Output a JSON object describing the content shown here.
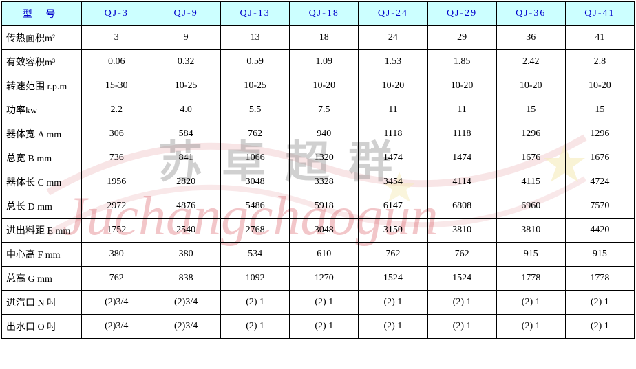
{
  "watermark": {
    "cn": "苏卓超群",
    "en": "Juchangchaogun",
    "swoosh_color": "rgba(200,40,50,0.35)",
    "star_color": "rgba(230,200,60,0.6)"
  },
  "table": {
    "header_bg": "#ccffff",
    "header_fg": "#0000cc",
    "border_color": "#000000",
    "model_label": "型 号",
    "models": [
      "QJ-3",
      "QJ-9",
      "QJ-13",
      "QJ-18",
      "QJ-24",
      "QJ-29",
      "QJ-36",
      "QJ-41"
    ],
    "rows": [
      {
        "label": "传热面积m²",
        "values": [
          "3",
          "9",
          "13",
          "18",
          "24",
          "29",
          "36",
          "41"
        ]
      },
      {
        "label": "有效容积m³",
        "values": [
          "0.06",
          "0.32",
          "0.59",
          "1.09",
          "1.53",
          "1.85",
          "2.42",
          "2.8"
        ]
      },
      {
        "label": "转速范围 r.p.m",
        "values": [
          "15-30",
          "10-25",
          "10-25",
          "10-20",
          "10-20",
          "10-20",
          "10-20",
          "10-20"
        ]
      },
      {
        "label": "功率kw",
        "values": [
          "2.2",
          "4.0",
          "5.5",
          "7.5",
          "11",
          "11",
          "15",
          "15"
        ]
      },
      {
        "label": "器体宽 A mm",
        "values": [
          "306",
          "584",
          "762",
          "940",
          "1118",
          "1118",
          "1296",
          "1296"
        ]
      },
      {
        "label": "总宽 B mm",
        "values": [
          "736",
          "841",
          "1066",
          "1320",
          "1474",
          "1474",
          "1676",
          "1676"
        ]
      },
      {
        "label": "器体长 C mm",
        "values": [
          "1956",
          "2820",
          "3048",
          "3328",
          "3454",
          "4114",
          "4115",
          "4724"
        ]
      },
      {
        "label": "总长 D mm",
        "values": [
          "2972",
          "4876",
          "5486",
          "5918",
          "6147",
          "6808",
          "6960",
          "7570"
        ]
      },
      {
        "label": "进出料距 E mm",
        "values": [
          "1752",
          "2540",
          "2768",
          "3048",
          "3150",
          "3810",
          "3810",
          "4420"
        ]
      },
      {
        "label": "中心高 F mm",
        "values": [
          "380",
          "380",
          "534",
          "610",
          "762",
          "762",
          "915",
          "915"
        ]
      },
      {
        "label": "总高 G mm",
        "values": [
          "762",
          "838",
          "1092",
          "1270",
          "1524",
          "1524",
          "1778",
          "1778"
        ]
      },
      {
        "label": "进汽口 N 吋",
        "values": [
          "(2)3/4",
          "(2)3/4",
          "(2) 1",
          "(2) 1",
          "(2) 1",
          "(2) 1",
          "(2) 1",
          "(2) 1"
        ]
      },
      {
        "label": "出水口 O 吋",
        "values": [
          "(2)3/4",
          "(2)3/4",
          "(2) 1",
          "(2) 1",
          "(2) 1",
          "(2) 1",
          "(2) 1",
          "(2) 1"
        ]
      }
    ]
  }
}
